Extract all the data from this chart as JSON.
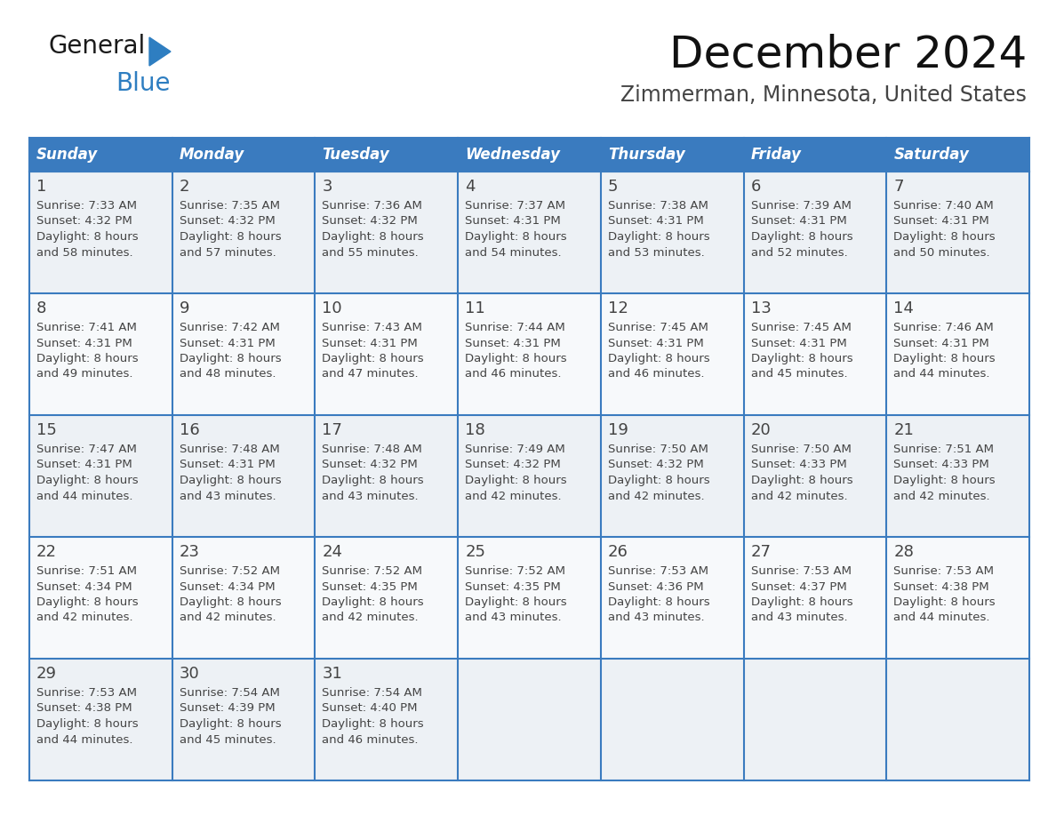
{
  "title": "December 2024",
  "subtitle": "Zimmerman, Minnesota, United States",
  "header_color": "#3a7bbf",
  "header_text_color": "#ffffff",
  "cell_bg_odd": "#edf1f5",
  "cell_bg_even": "#f7f9fb",
  "border_color": "#3a7bbf",
  "text_color": "#444444",
  "day_number_color": "#444444",
  "day_headers": [
    "Sunday",
    "Monday",
    "Tuesday",
    "Wednesday",
    "Thursday",
    "Friday",
    "Saturday"
  ],
  "weeks": [
    [
      {
        "day": 1,
        "sunrise": "7:33 AM",
        "sunset": "4:32 PM",
        "daylight": "8 hours\nand 58 minutes."
      },
      {
        "day": 2,
        "sunrise": "7:35 AM",
        "sunset": "4:32 PM",
        "daylight": "8 hours\nand 57 minutes."
      },
      {
        "day": 3,
        "sunrise": "7:36 AM",
        "sunset": "4:32 PM",
        "daylight": "8 hours\nand 55 minutes."
      },
      {
        "day": 4,
        "sunrise": "7:37 AM",
        "sunset": "4:31 PM",
        "daylight": "8 hours\nand 54 minutes."
      },
      {
        "day": 5,
        "sunrise": "7:38 AM",
        "sunset": "4:31 PM",
        "daylight": "8 hours\nand 53 minutes."
      },
      {
        "day": 6,
        "sunrise": "7:39 AM",
        "sunset": "4:31 PM",
        "daylight": "8 hours\nand 52 minutes."
      },
      {
        "day": 7,
        "sunrise": "7:40 AM",
        "sunset": "4:31 PM",
        "daylight": "8 hours\nand 50 minutes."
      }
    ],
    [
      {
        "day": 8,
        "sunrise": "7:41 AM",
        "sunset": "4:31 PM",
        "daylight": "8 hours\nand 49 minutes."
      },
      {
        "day": 9,
        "sunrise": "7:42 AM",
        "sunset": "4:31 PM",
        "daylight": "8 hours\nand 48 minutes."
      },
      {
        "day": 10,
        "sunrise": "7:43 AM",
        "sunset": "4:31 PM",
        "daylight": "8 hours\nand 47 minutes."
      },
      {
        "day": 11,
        "sunrise": "7:44 AM",
        "sunset": "4:31 PM",
        "daylight": "8 hours\nand 46 minutes."
      },
      {
        "day": 12,
        "sunrise": "7:45 AM",
        "sunset": "4:31 PM",
        "daylight": "8 hours\nand 46 minutes."
      },
      {
        "day": 13,
        "sunrise": "7:45 AM",
        "sunset": "4:31 PM",
        "daylight": "8 hours\nand 45 minutes."
      },
      {
        "day": 14,
        "sunrise": "7:46 AM",
        "sunset": "4:31 PM",
        "daylight": "8 hours\nand 44 minutes."
      }
    ],
    [
      {
        "day": 15,
        "sunrise": "7:47 AM",
        "sunset": "4:31 PM",
        "daylight": "8 hours\nand 44 minutes."
      },
      {
        "day": 16,
        "sunrise": "7:48 AM",
        "sunset": "4:31 PM",
        "daylight": "8 hours\nand 43 minutes."
      },
      {
        "day": 17,
        "sunrise": "7:48 AM",
        "sunset": "4:32 PM",
        "daylight": "8 hours\nand 43 minutes."
      },
      {
        "day": 18,
        "sunrise": "7:49 AM",
        "sunset": "4:32 PM",
        "daylight": "8 hours\nand 42 minutes."
      },
      {
        "day": 19,
        "sunrise": "7:50 AM",
        "sunset": "4:32 PM",
        "daylight": "8 hours\nand 42 minutes."
      },
      {
        "day": 20,
        "sunrise": "7:50 AM",
        "sunset": "4:33 PM",
        "daylight": "8 hours\nand 42 minutes."
      },
      {
        "day": 21,
        "sunrise": "7:51 AM",
        "sunset": "4:33 PM",
        "daylight": "8 hours\nand 42 minutes."
      }
    ],
    [
      {
        "day": 22,
        "sunrise": "7:51 AM",
        "sunset": "4:34 PM",
        "daylight": "8 hours\nand 42 minutes."
      },
      {
        "day": 23,
        "sunrise": "7:52 AM",
        "sunset": "4:34 PM",
        "daylight": "8 hours\nand 42 minutes."
      },
      {
        "day": 24,
        "sunrise": "7:52 AM",
        "sunset": "4:35 PM",
        "daylight": "8 hours\nand 42 minutes."
      },
      {
        "day": 25,
        "sunrise": "7:52 AM",
        "sunset": "4:35 PM",
        "daylight": "8 hours\nand 43 minutes."
      },
      {
        "day": 26,
        "sunrise": "7:53 AM",
        "sunset": "4:36 PM",
        "daylight": "8 hours\nand 43 minutes."
      },
      {
        "day": 27,
        "sunrise": "7:53 AM",
        "sunset": "4:37 PM",
        "daylight": "8 hours\nand 43 minutes."
      },
      {
        "day": 28,
        "sunrise": "7:53 AM",
        "sunset": "4:38 PM",
        "daylight": "8 hours\nand 44 minutes."
      }
    ],
    [
      {
        "day": 29,
        "sunrise": "7:53 AM",
        "sunset": "4:38 PM",
        "daylight": "8 hours\nand 44 minutes."
      },
      {
        "day": 30,
        "sunrise": "7:54 AM",
        "sunset": "4:39 PM",
        "daylight": "8 hours\nand 45 minutes."
      },
      {
        "day": 31,
        "sunrise": "7:54 AM",
        "sunset": "4:40 PM",
        "daylight": "8 hours\nand 46 minutes."
      },
      null,
      null,
      null,
      null
    ]
  ],
  "logo_text_general": "General",
  "logo_text_blue": "Blue",
  "logo_color_general": "#1a1a1a",
  "logo_color_blue": "#2e7ec1",
  "logo_triangle_color": "#2e7ec1"
}
